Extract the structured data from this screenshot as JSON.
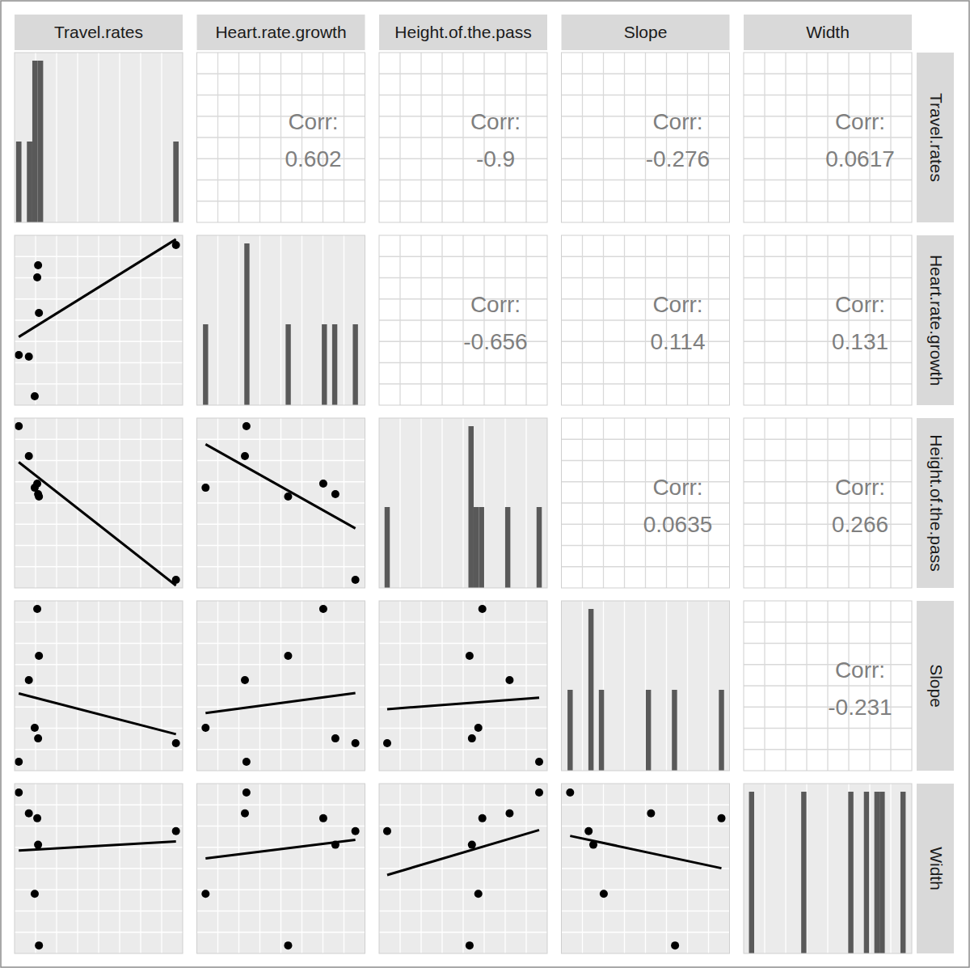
{
  "chart_data": {
    "type": "scatter_matrix",
    "grid": true,
    "tick_labels": false,
    "color": "#000000",
    "corr_label": "Corr:",
    "variables": [
      {
        "name": "Travel.rates",
        "values": [
          96,
          14,
          13.5,
          14.5,
          2.5,
          8.5,
          12
        ],
        "lim": [
          0,
          100
        ],
        "ticks": [
          12.5,
          25,
          37.5,
          50,
          62.5,
          75,
          87.5
        ]
      },
      {
        "name": "Heart.rate.growth",
        "values": [
          94.3,
          82.4,
          75.2,
          54.3,
          29.5,
          28.6,
          5.2
        ],
        "lim": [
          0,
          100
        ],
        "ticks": [
          12.5,
          25,
          37.5,
          50,
          62.5,
          75,
          87.5
        ]
      },
      {
        "name": "Height.of.the.pass",
        "values": [
          4.8,
          55.2,
          61.4,
          53.8,
          95.2,
          77.6,
          59
        ],
        "lim": [
          0,
          100
        ],
        "ticks": [
          12.5,
          25,
          37.5,
          50,
          62.5,
          75,
          87.5
        ]
      },
      {
        "name": "Slope",
        "values": [
          16.2,
          19,
          95.2,
          67.6,
          5.2,
          53.3,
          25.2
        ],
        "lim": [
          0,
          100
        ],
        "ticks": [
          12.5,
          25,
          37.5,
          50,
          62.5,
          75,
          87.5
        ]
      },
      {
        "name": "Width",
        "values": [
          72,
          64,
          79.6,
          4.7,
          94.8,
          82.5,
          35.1
        ],
        "lim": [
          0,
          100
        ],
        "ticks": [
          12.5,
          25,
          37.5,
          50,
          62.5,
          75,
          87.5
        ]
      }
    ],
    "correlations": [
      [
        0.602,
        -0.9,
        -0.276,
        0.0617
      ],
      [
        -0.656,
        0.114,
        0.131
      ],
      [
        0.0635,
        0.266
      ],
      [
        -0.231
      ]
    ]
  }
}
